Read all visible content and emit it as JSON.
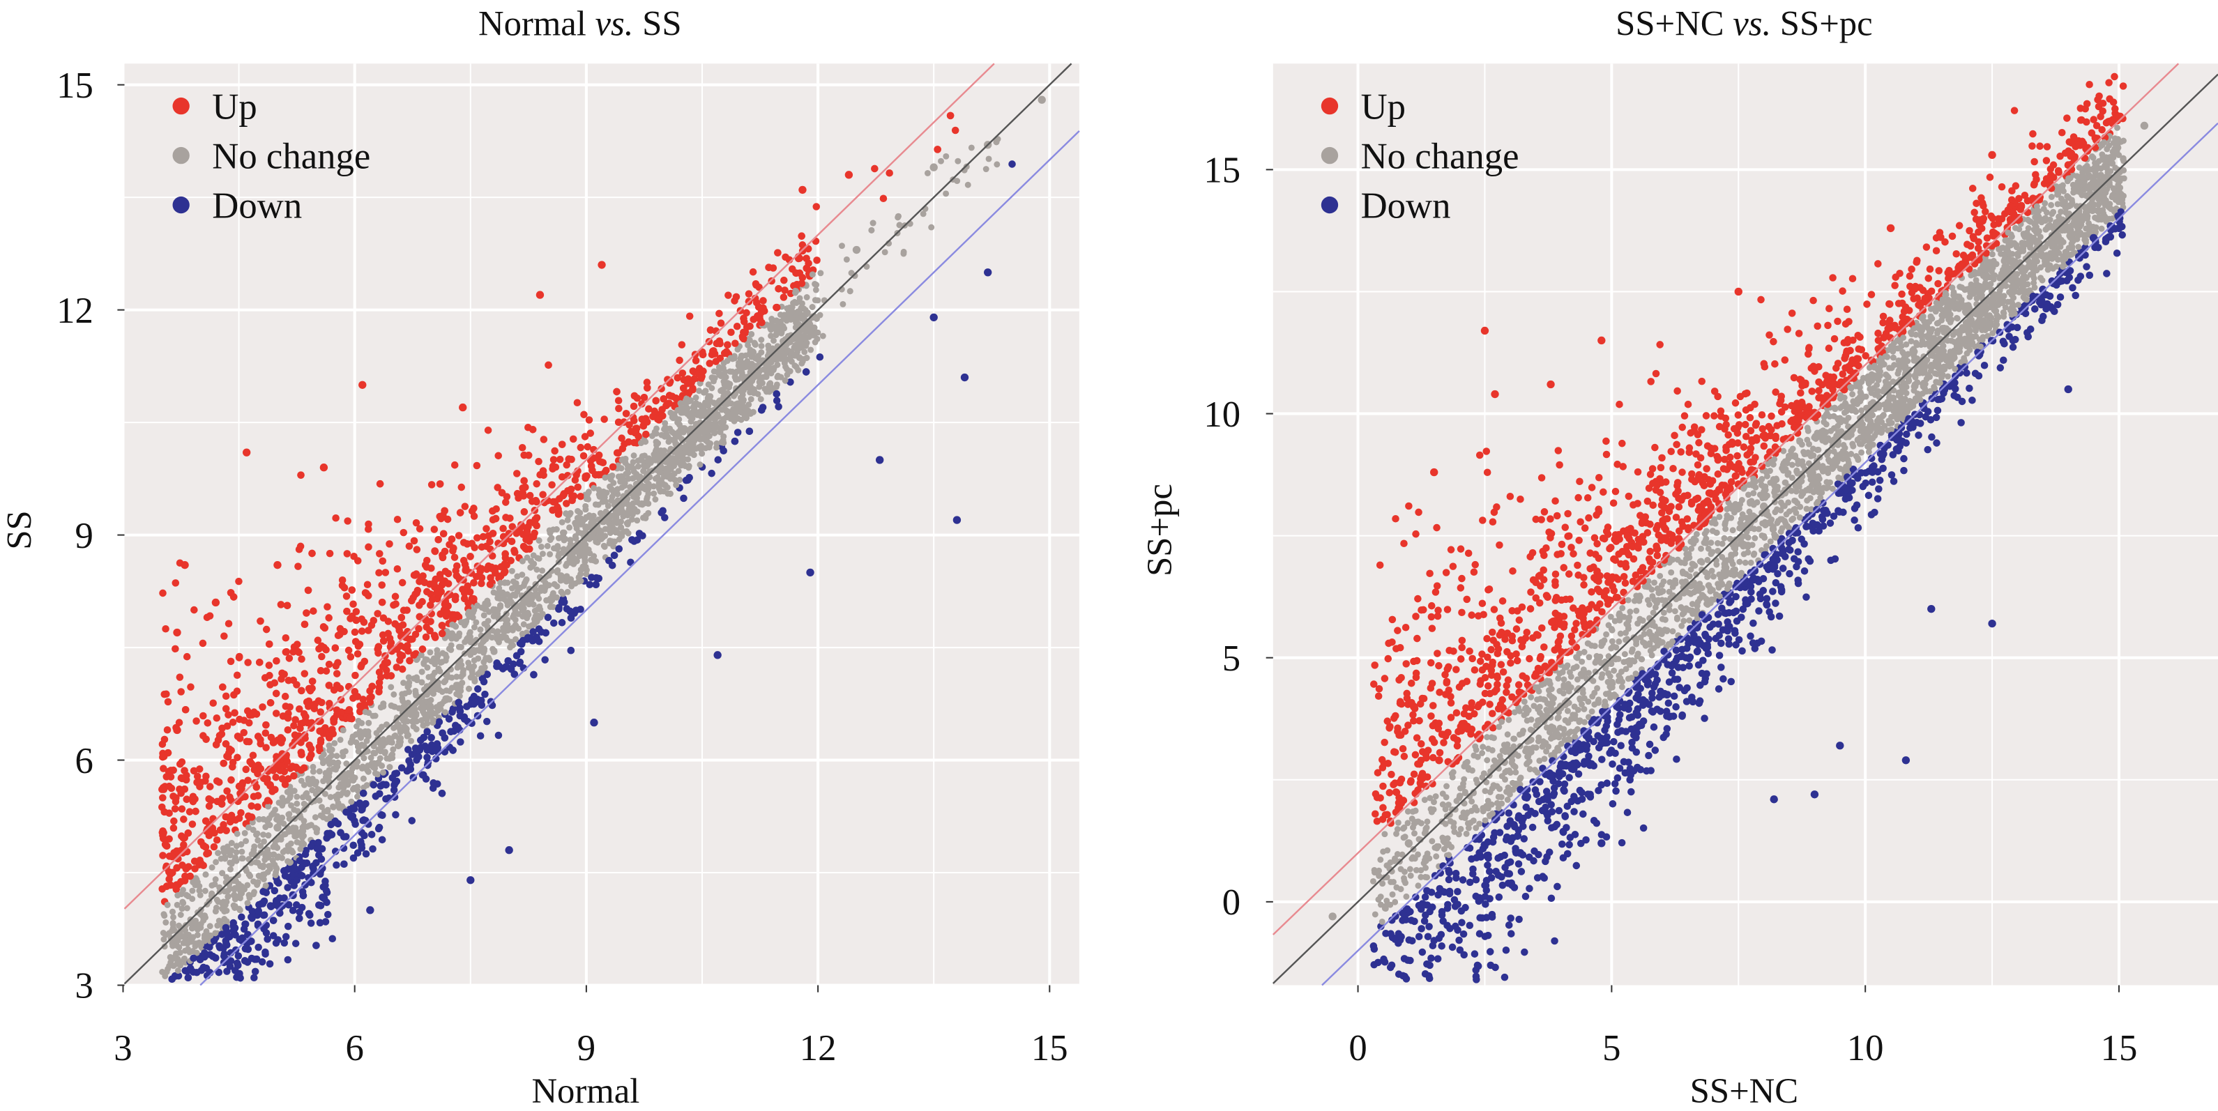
{
  "chart_data": [
    {
      "type": "scatter",
      "title_parts": [
        "Normal ",
        "vs.",
        " SS"
      ],
      "xlabel": "Normal",
      "ylabel": "SS",
      "xlim": [
        3,
        15.3
      ],
      "ylim": [
        3,
        15.3
      ],
      "xticks": [
        3,
        6,
        9,
        12,
        15
      ],
      "yticks": [
        3,
        6,
        9,
        12,
        15
      ],
      "grid": true,
      "legend_position": "top-left",
      "reference_lines": [
        {
          "slope": 1,
          "intercept": 0,
          "color": "#555555"
        },
        {
          "slope": 1,
          "intercept": 1,
          "color": "#e88a90"
        },
        {
          "slope": 1,
          "intercept": -1,
          "color": "#8a8ae0"
        }
      ],
      "series": [
        {
          "name": "Up",
          "color": "#e8352b",
          "points": [
            [
              4.6,
              10.1
            ],
            [
              3.7,
              7.7
            ],
            [
              3.8,
              8.6
            ],
            [
              5.0,
              8.6
            ],
            [
              6.1,
              11.0
            ],
            [
              7.4,
              10.7
            ],
            [
              8.4,
              12.2
            ],
            [
              9.2,
              12.6
            ],
            [
              11.8,
              13.6
            ],
            [
              12.4,
              13.8
            ],
            [
              4.2,
              8.1
            ],
            [
              5.6,
              9.9
            ],
            [
              3.7,
              6.4
            ],
            [
              4.0,
              5.7
            ]
          ]
        },
        {
          "name": "No change",
          "color": "#a8a29e",
          "points": [
            [
              3.7,
              3.6
            ],
            [
              5,
              5.1
            ],
            [
              7,
              7
            ],
            [
              9,
              9.1
            ],
            [
              11,
              11.2
            ],
            [
              12.5,
              12.8
            ],
            [
              13.5,
              13.9
            ],
            [
              14.2,
              14.2
            ],
            [
              14.9,
              14.8
            ]
          ]
        },
        {
          "name": "Down",
          "color": "#2e3192",
          "points": [
            [
              6.2,
              4.0
            ],
            [
              7.5,
              4.4
            ],
            [
              8.0,
              4.8
            ],
            [
              9.1,
              6.5
            ],
            [
              10.7,
              7.4
            ],
            [
              11.9,
              8.5
            ],
            [
              12.8,
              10.0
            ],
            [
              13.9,
              11.1
            ],
            [
              13.8,
              9.2
            ],
            [
              14.2,
              12.5
            ],
            [
              13.5,
              11.9
            ],
            [
              5.2,
              4.2
            ]
          ]
        }
      ]
    },
    {
      "type": "scatter",
      "title_parts": [
        "SS+NC ",
        "vs.",
        " SS+pc"
      ],
      "xlabel": "SS+NC",
      "ylabel": "SS+pc",
      "xlim": [
        -1.7,
        16.8
      ],
      "ylim": [
        -1.7,
        16.8
      ],
      "xticks": [
        0,
        5,
        10,
        15
      ],
      "yticks": [
        0,
        5,
        10,
        15
      ],
      "grid": true,
      "legend_position": "top-left",
      "reference_lines": [
        {
          "slope": 1,
          "intercept": 0,
          "color": "#555555"
        },
        {
          "slope": 1,
          "intercept": 1,
          "color": "#e88a90"
        },
        {
          "slope": 1,
          "intercept": -1,
          "color": "#8a8ae0"
        }
      ],
      "series": [
        {
          "name": "Up",
          "color": "#e8352b",
          "points": [
            [
              2.5,
              11.7
            ],
            [
              1.5,
              8.8
            ],
            [
              2.7,
              10.4
            ],
            [
              3.8,
              10.6
            ],
            [
              4.8,
              11.5
            ],
            [
              7.5,
              12.5
            ],
            [
              10.5,
              13.8
            ],
            [
              12.5,
              15.3
            ],
            [
              1.1,
              4.0
            ],
            [
              1.6,
              2.9
            ]
          ]
        },
        {
          "name": "No change",
          "color": "#a8a29e",
          "points": [
            [
              -0.5,
              -0.3
            ],
            [
              1,
              1.2
            ],
            [
              4,
              4
            ],
            [
              8,
              8.1
            ],
            [
              12,
              12.2
            ],
            [
              15.5,
              15.9
            ]
          ]
        },
        {
          "name": "Down",
          "color": "#2e3192",
          "points": [
            [
              3.2,
              1.0
            ],
            [
              4.8,
              1.2
            ],
            [
              8.2,
              2.1
            ],
            [
              9.0,
              2.2
            ],
            [
              10.8,
              2.9
            ],
            [
              12.5,
              5.7
            ],
            [
              14.0,
              10.5
            ],
            [
              14.5,
              13.6
            ],
            [
              15.0,
              13.8
            ],
            [
              11.3,
              6.0
            ],
            [
              9.5,
              3.2
            ]
          ]
        }
      ]
    }
  ]
}
